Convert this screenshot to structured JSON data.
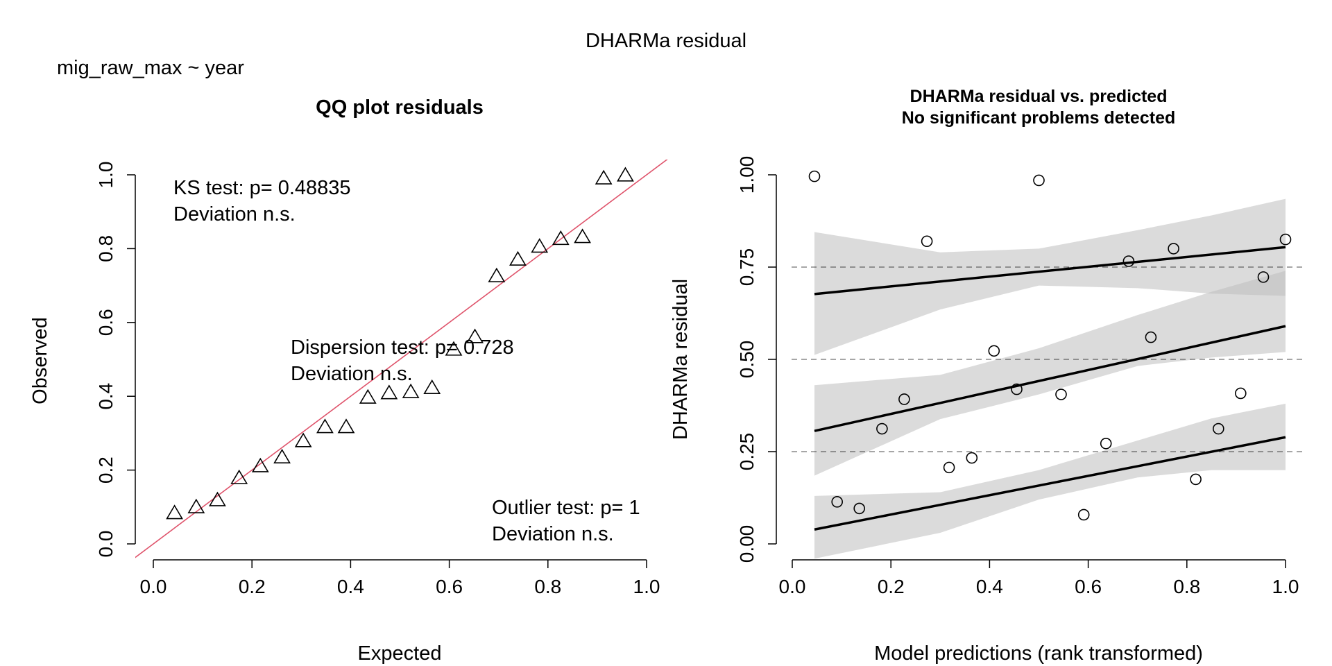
{
  "figure": {
    "title": "DHARMa residual",
    "formula": "mig_raw_max ~ year"
  },
  "chart_data": [
    {
      "type": "scatter",
      "title": "QQ plot residuals",
      "xlabel": "Expected",
      "ylabel": "Observed",
      "xlim": [
        0.0,
        1.0
      ],
      "ylim": [
        0.0,
        1.0
      ],
      "xticks": [
        "0.0",
        "0.2",
        "0.4",
        "0.6",
        "0.8",
        "1.0"
      ],
      "yticks": [
        "0.0",
        "0.2",
        "0.4",
        "0.6",
        "0.8",
        "1.0"
      ],
      "marker": "triangle",
      "reference_line": {
        "intercept": 0,
        "slope": 1,
        "color": "#DF536B"
      },
      "points": [
        [
          0.043,
          0.083
        ],
        [
          0.087,
          0.099
        ],
        [
          0.13,
          0.118
        ],
        [
          0.174,
          0.178
        ],
        [
          0.217,
          0.21
        ],
        [
          0.261,
          0.234
        ],
        [
          0.304,
          0.278
        ],
        [
          0.348,
          0.316
        ],
        [
          0.391,
          0.316
        ],
        [
          0.435,
          0.396
        ],
        [
          0.478,
          0.408
        ],
        [
          0.522,
          0.411
        ],
        [
          0.565,
          0.422
        ],
        [
          0.609,
          0.526
        ],
        [
          0.652,
          0.56
        ],
        [
          0.696,
          0.725
        ],
        [
          0.739,
          0.77
        ],
        [
          0.783,
          0.805
        ],
        [
          0.826,
          0.826
        ],
        [
          0.87,
          0.831
        ],
        [
          0.913,
          0.99
        ],
        [
          0.957,
          0.998
        ]
      ],
      "annotations": [
        {
          "lines": [
            "KS test: p= 0.48835",
            "Deviation  n.s."
          ]
        },
        {
          "lines": [
            "Dispersion test: p= 0.728",
            "Deviation  n.s."
          ]
        },
        {
          "lines": [
            "Outlier test: p= 1",
            "Deviation  n.s."
          ]
        }
      ]
    },
    {
      "type": "scatter",
      "title": "DHARMa residual vs. predicted",
      "subtitle": "No significant problems detected",
      "xlabel": "Model predictions (rank transformed)",
      "ylabel": "DHARMa residual",
      "xlim": [
        0.0,
        1.0
      ],
      "ylim": [
        0.0,
        1.0
      ],
      "xticks": [
        "0.0",
        "0.2",
        "0.4",
        "0.6",
        "0.8",
        "1.0"
      ],
      "yticks": [
        "0.00",
        "0.25",
        "0.50",
        "0.75",
        "1.00"
      ],
      "marker": "circle",
      "hlines": [
        0.25,
        0.5,
        0.75
      ],
      "points": [
        [
          0.045,
          0.996
        ],
        [
          0.091,
          0.114
        ],
        [
          0.136,
          0.096
        ],
        [
          0.182,
          0.312
        ],
        [
          0.227,
          0.392
        ],
        [
          0.273,
          0.82
        ],
        [
          0.318,
          0.207
        ],
        [
          0.364,
          0.233
        ],
        [
          0.409,
          0.523
        ],
        [
          0.455,
          0.419
        ],
        [
          0.5,
          0.985
        ],
        [
          0.545,
          0.405
        ],
        [
          0.591,
          0.079
        ],
        [
          0.636,
          0.272
        ],
        [
          0.682,
          0.766
        ],
        [
          0.727,
          0.56
        ],
        [
          0.773,
          0.8
        ],
        [
          0.818,
          0.175
        ],
        [
          0.864,
          0.312
        ],
        [
          0.909,
          0.408
        ],
        [
          0.955,
          0.723
        ],
        [
          1.0,
          0.825
        ]
      ],
      "quantile_fits": [
        {
          "quantile": 0.75,
          "x": [
            0.045,
            1.0
          ],
          "y": [
            0.677,
            0.804
          ],
          "band_upper": [
            [
              0.045,
              0.845
            ],
            [
              0.3,
              0.79
            ],
            [
              0.5,
              0.8
            ],
            [
              0.7,
              0.85
            ],
            [
              0.85,
              0.89
            ],
            [
              1.0,
              0.935
            ]
          ],
          "band_lower": [
            [
              0.045,
              0.512
            ],
            [
              0.3,
              0.635
            ],
            [
              0.5,
              0.7
            ],
            [
              0.7,
              0.693
            ],
            [
              0.85,
              0.678
            ],
            [
              1.0,
              0.672
            ]
          ]
        },
        {
          "quantile": 0.5,
          "x": [
            0.045,
            1.0
          ],
          "y": [
            0.306,
            0.59
          ],
          "band_upper": [
            [
              0.045,
              0.43
            ],
            [
              0.3,
              0.458
            ],
            [
              0.5,
              0.53
            ],
            [
              0.7,
              0.62
            ],
            [
              0.85,
              0.683
            ],
            [
              1.0,
              0.74
            ]
          ],
          "band_lower": [
            [
              0.045,
              0.185
            ],
            [
              0.3,
              0.338
            ],
            [
              0.5,
              0.405
            ],
            [
              0.7,
              0.482
            ],
            [
              0.85,
              0.505
            ],
            [
              1.0,
              0.52
            ]
          ]
        },
        {
          "quantile": 0.25,
          "x": [
            0.045,
            1.0
          ],
          "y": [
            0.039,
            0.289
          ],
          "band_upper": [
            [
              0.045,
              0.13
            ],
            [
              0.3,
              0.14
            ],
            [
              0.5,
              0.2
            ],
            [
              0.7,
              0.28
            ],
            [
              0.85,
              0.34
            ],
            [
              1.0,
              0.38
            ]
          ],
          "band_lower": [
            [
              0.045,
              -0.04
            ],
            [
              0.3,
              0.03
            ],
            [
              0.5,
              0.12
            ],
            [
              0.7,
              0.18
            ],
            [
              0.85,
              0.2
            ],
            [
              1.0,
              0.2
            ]
          ]
        }
      ]
    }
  ]
}
